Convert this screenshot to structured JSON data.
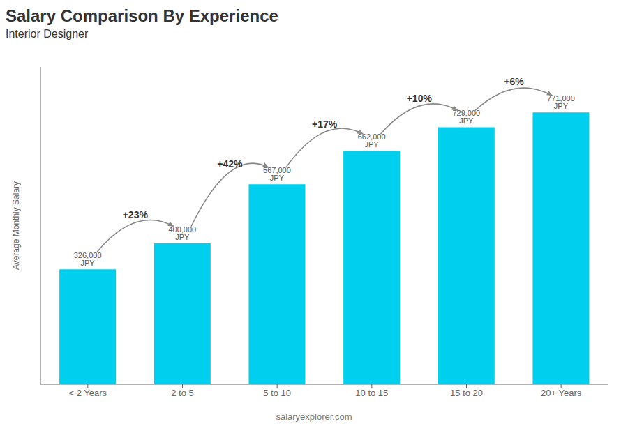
{
  "chart_data": {
    "type": "bar",
    "title": "Salary Comparison By Experience",
    "subtitle": "Interior Designer",
    "ylabel": "Average Monthly Salary",
    "watermark": "salaryexplorer.com",
    "categories": [
      "< 2 Years",
      "2 to 5",
      "5 to 10",
      "10 to 15",
      "15 to 20",
      "20+ Years"
    ],
    "values": [
      326000,
      400000,
      567000,
      662000,
      729000,
      771000
    ],
    "value_labels": [
      "326,000 JPY",
      "400,000 JPY",
      "567,000 JPY",
      "662,000 JPY",
      "729,000 JPY",
      "771,000 JPY"
    ],
    "data_labels": true,
    "annotations": [
      "+23%",
      "+42%",
      "+17%",
      "+10%",
      "+6%"
    ],
    "color": "#00cfee",
    "ylim": [
      0,
      900000
    ],
    "tick_labels": "x",
    "grid": false
  }
}
